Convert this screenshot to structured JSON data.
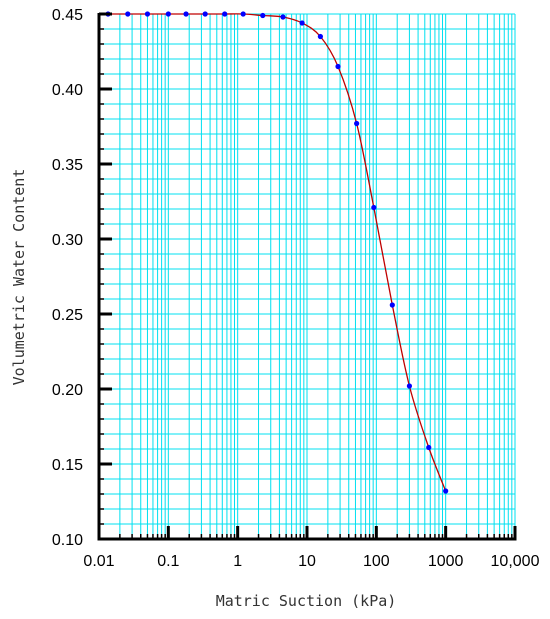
{
  "chart_data": {
    "type": "scatter",
    "title": "",
    "xlabel": "Matric Suction (kPa)",
    "ylabel": "Volumetric Water Content",
    "x_scale": "log",
    "xlim": [
      0.01,
      10000
    ],
    "ylim": [
      0.1,
      0.45
    ],
    "x_ticks": [
      {
        "value": 0.01,
        "label": "0.01"
      },
      {
        "value": 0.1,
        "label": "0.1"
      },
      {
        "value": 1,
        "label": "1"
      },
      {
        "value": 10,
        "label": "10"
      },
      {
        "value": 100,
        "label": "100"
      },
      {
        "value": 1000,
        "label": "1000"
      },
      {
        "value": 10000,
        "label": "10,000"
      }
    ],
    "y_ticks": [
      {
        "value": 0.1,
        "label": "0.10"
      },
      {
        "value": 0.15,
        "label": "0.15"
      },
      {
        "value": 0.2,
        "label": "0.20"
      },
      {
        "value": 0.25,
        "label": "0.25"
      },
      {
        "value": 0.3,
        "label": "0.30"
      },
      {
        "value": 0.35,
        "label": "0.35"
      },
      {
        "value": 0.4,
        "label": "0.40"
      },
      {
        "value": 0.45,
        "label": "0.45"
      }
    ],
    "grid": true,
    "grid_color": "#00e0f0",
    "series": [
      {
        "marker_color": "#0000ff",
        "line_color": "#c00000",
        "points": [
          {
            "x": 0.0135,
            "y": 0.45
          },
          {
            "x": 0.026,
            "y": 0.45
          },
          {
            "x": 0.05,
            "y": 0.45
          },
          {
            "x": 0.1,
            "y": 0.45
          },
          {
            "x": 0.18,
            "y": 0.45
          },
          {
            "x": 0.34,
            "y": 0.45
          },
          {
            "x": 0.65,
            "y": 0.45
          },
          {
            "x": 1.2,
            "y": 0.45
          },
          {
            "x": 2.3,
            "y": 0.449
          },
          {
            "x": 4.5,
            "y": 0.448
          },
          {
            "x": 8.5,
            "y": 0.444
          },
          {
            "x": 15.6,
            "y": 0.435
          },
          {
            "x": 28,
            "y": 0.415
          },
          {
            "x": 52,
            "y": 0.377
          },
          {
            "x": 92,
            "y": 0.321
          },
          {
            "x": 170,
            "y": 0.256
          },
          {
            "x": 300,
            "y": 0.202
          },
          {
            "x": 570,
            "y": 0.161
          },
          {
            "x": 1000,
            "y": 0.132
          }
        ]
      }
    ]
  }
}
